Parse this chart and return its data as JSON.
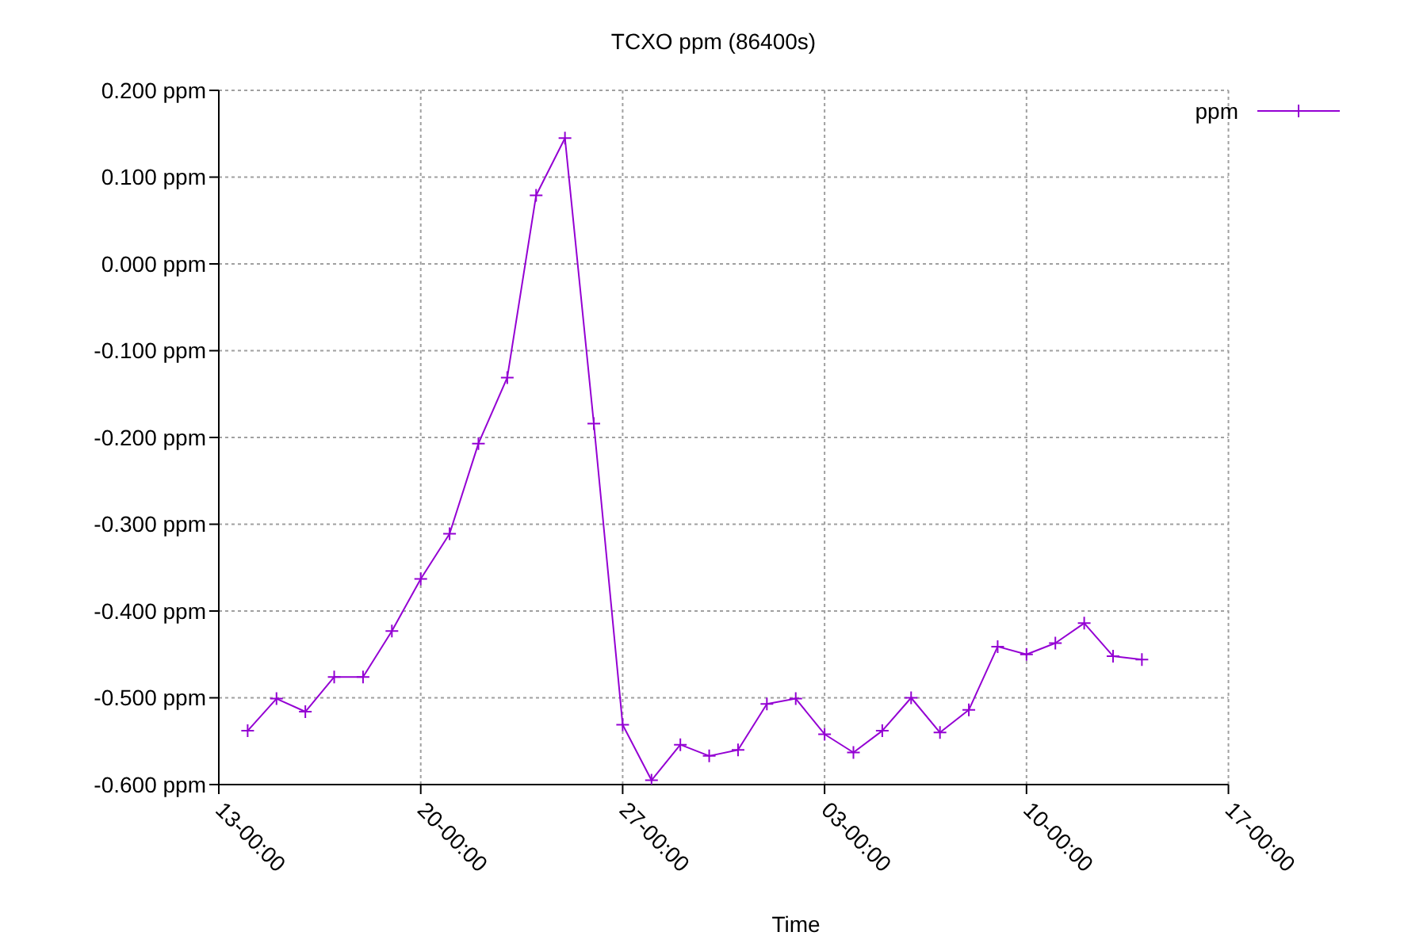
{
  "chart_data": {
    "type": "line",
    "title": "TCXO ppm (86400s)",
    "xlabel": "Time",
    "categories": [
      "13-00:00",
      null,
      null,
      null,
      null,
      null,
      null,
      "20-00:00",
      null,
      null,
      null,
      null,
      null,
      null,
      "27-00:00",
      null,
      null,
      null,
      null,
      null,
      null,
      "03-00:00",
      null,
      null,
      null,
      null,
      null,
      null,
      "10-00:00",
      null,
      null,
      null,
      null,
      null,
      null,
      "17-00:00"
    ],
    "series": [
      {
        "name": "ppm",
        "color": "#9400d3",
        "values": [
          null,
          -0.538,
          -0.501,
          -0.516,
          -0.476,
          -0.476,
          -0.423,
          -0.363,
          -0.311,
          -0.207,
          -0.131,
          0.079,
          0.145,
          -0.184,
          -0.531,
          -0.595,
          -0.554,
          -0.567,
          -0.56,
          -0.507,
          -0.501,
          -0.542,
          -0.563,
          -0.538,
          -0.5,
          -0.54,
          -0.514,
          -0.441,
          -0.45,
          -0.437,
          -0.414,
          -0.452,
          -0.456,
          null,
          null,
          null
        ]
      }
    ],
    "ylim": [
      -0.6,
      0.2
    ],
    "yticks": [
      {
        "value": -0.6,
        "label": "-0.600 ppm"
      },
      {
        "value": -0.5,
        "label": "-0.500 ppm"
      },
      {
        "value": -0.4,
        "label": "-0.400 ppm"
      },
      {
        "value": -0.3,
        "label": "-0.300 ppm"
      },
      {
        "value": -0.2,
        "label": "-0.200 ppm"
      },
      {
        "value": -0.1,
        "label": "-0.100 ppm"
      },
      {
        "value": 0,
        "label": "0.000 ppm"
      },
      {
        "value": 0.1,
        "label": "0.100 ppm"
      },
      {
        "value": 0.2,
        "label": "0.200 ppm"
      }
    ],
    "grid": true,
    "legend": "top right",
    "marker": "cross",
    "line_style": "solid"
  }
}
